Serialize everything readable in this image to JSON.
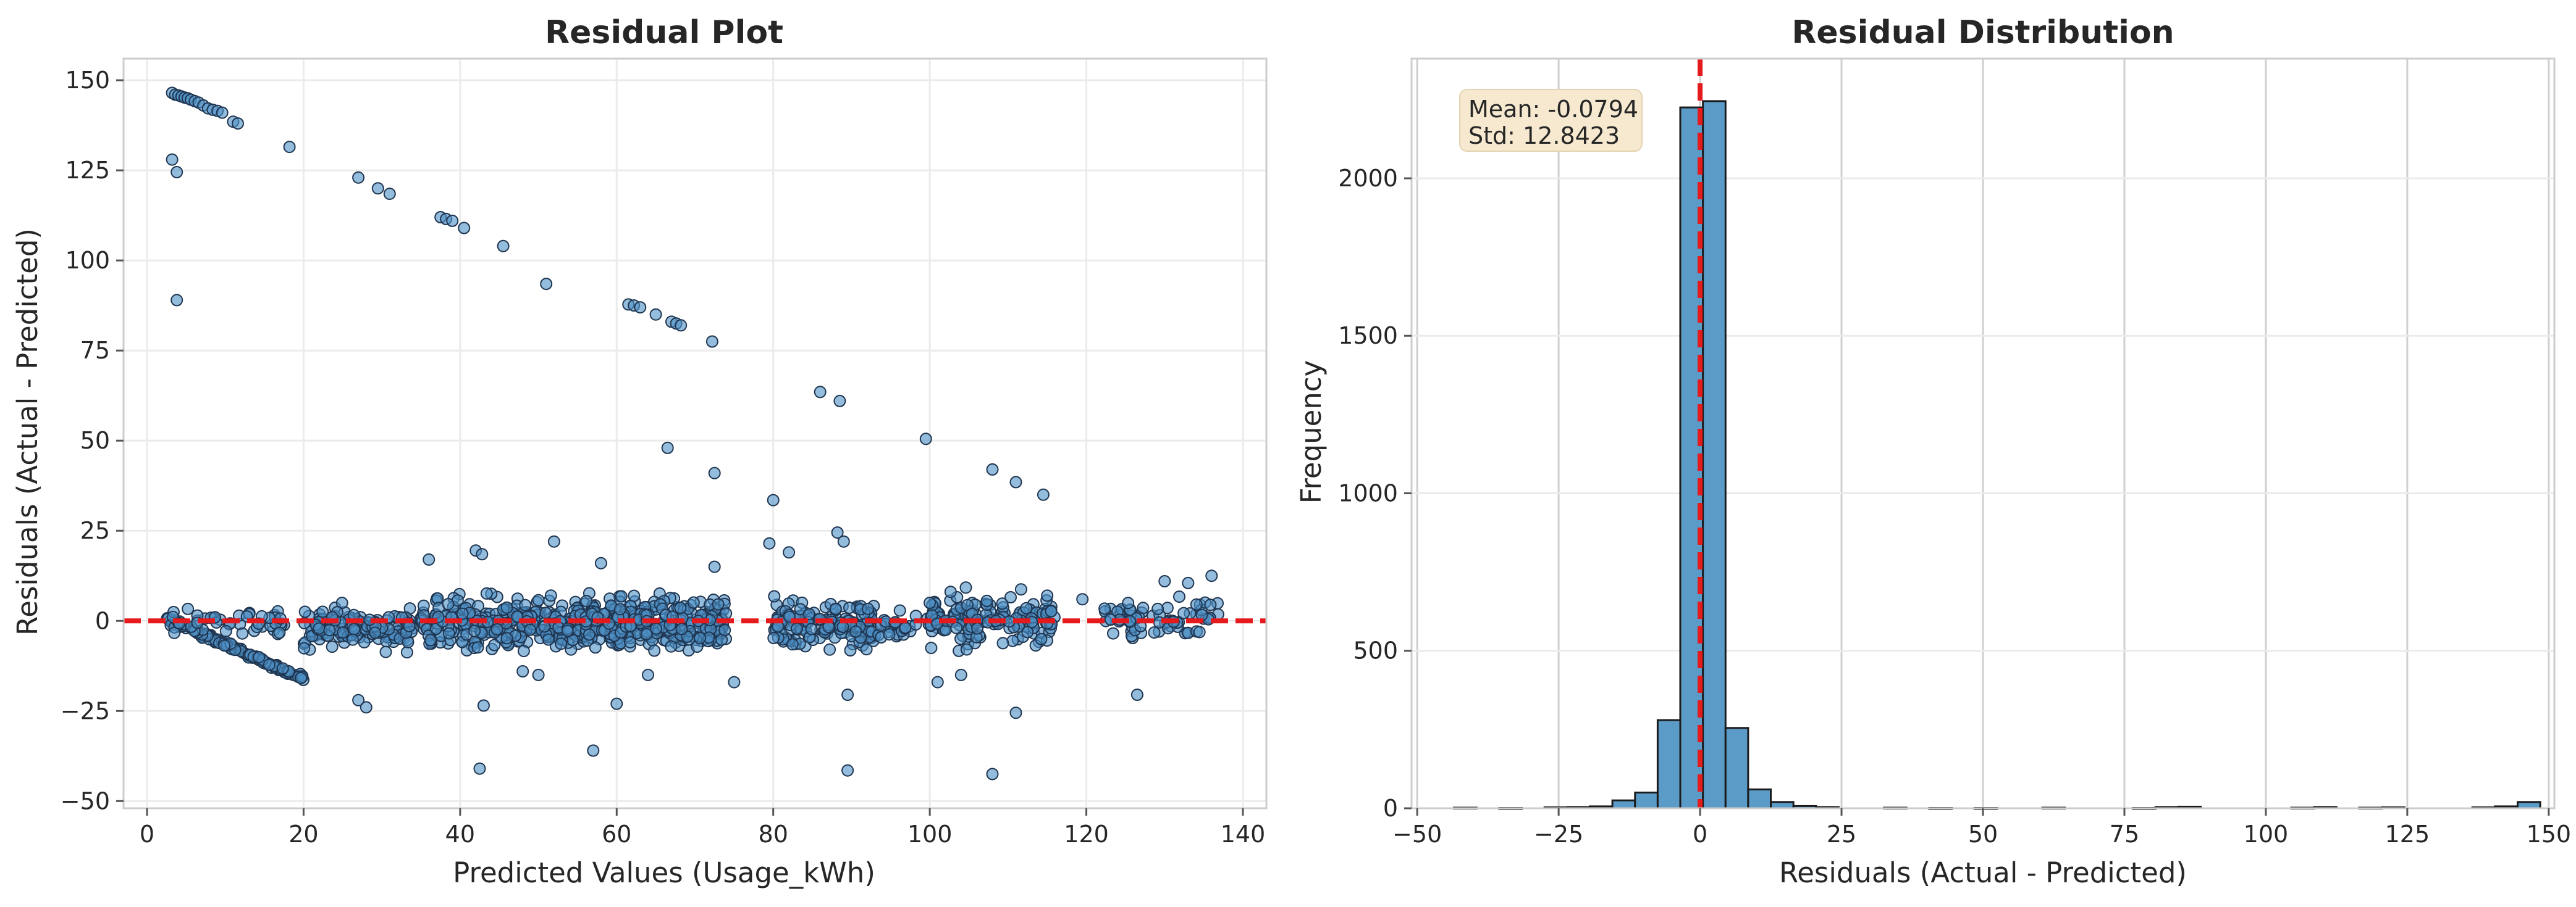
{
  "chart_data": [
    {
      "type": "scatter",
      "title": "Residual Plot",
      "xlabel": "Predicted Values (Usage_kWh)",
      "ylabel": "Residuals (Actual - Predicted)",
      "xlim": [
        -3,
        143
      ],
      "ylim": [
        -52,
        156
      ],
      "xticks": [
        0,
        20,
        40,
        60,
        80,
        100,
        120,
        140
      ],
      "yticks": [
        -50,
        -25,
        0,
        25,
        50,
        75,
        100,
        125,
        150
      ],
      "grid": true,
      "reference_line": {
        "y": 0,
        "style": "dashed",
        "color": "#e41a1c"
      },
      "point_color": "#4c8fc4",
      "outliers": [
        [
          3.2,
          146.5
        ],
        [
          3.6,
          146
        ],
        [
          4,
          145.8
        ],
        [
          4.4,
          145.5
        ],
        [
          4.8,
          145.2
        ],
        [
          5.2,
          145
        ],
        [
          5.6,
          144.6
        ],
        [
          6.1,
          144.2
        ],
        [
          6.6,
          143.8
        ],
        [
          7.2,
          143
        ],
        [
          7.8,
          142.2
        ],
        [
          8.4,
          141.8
        ],
        [
          9,
          141.5
        ],
        [
          9.6,
          141
        ],
        [
          11,
          138.5
        ],
        [
          11.6,
          138
        ],
        [
          18.2,
          131.5
        ],
        [
          27,
          123
        ],
        [
          29.5,
          120
        ],
        [
          31,
          118.5
        ],
        [
          37.5,
          112
        ],
        [
          38.2,
          111.5
        ],
        [
          39,
          111
        ],
        [
          40.5,
          109
        ],
        [
          45.5,
          104
        ],
        [
          51,
          93.5
        ],
        [
          61.5,
          87.8
        ],
        [
          62.2,
          87.5
        ],
        [
          63,
          87
        ],
        [
          65,
          85
        ],
        [
          67,
          83
        ],
        [
          67.6,
          82.5
        ],
        [
          68.2,
          82
        ],
        [
          72.2,
          77.5
        ],
        [
          86,
          63.5
        ],
        [
          88.5,
          61
        ],
        [
          99.5,
          50.5
        ],
        [
          108,
          42
        ],
        [
          111,
          38.5
        ],
        [
          114.5,
          35
        ],
        [
          3.2,
          128
        ],
        [
          3.8,
          124.5
        ],
        [
          3.8,
          89
        ],
        [
          66.5,
          48
        ],
        [
          72.5,
          41
        ],
        [
          80,
          33.5
        ],
        [
          79.5,
          21.5
        ],
        [
          82,
          19
        ],
        [
          88.2,
          24.5
        ],
        [
          89,
          22
        ],
        [
          42,
          19.5
        ],
        [
          42.8,
          18.5
        ],
        [
          52,
          22
        ],
        [
          36,
          17
        ],
        [
          72.5,
          15
        ],
        [
          58,
          16
        ],
        [
          100,
          5
        ],
        [
          115,
          7
        ],
        [
          119.5,
          6
        ],
        [
          136,
          12.5
        ],
        [
          130,
          11
        ],
        [
          133,
          10.5
        ],
        [
          27,
          -22
        ],
        [
          28,
          -24
        ],
        [
          43,
          -23.5
        ],
        [
          42.5,
          -41
        ],
        [
          57,
          -36
        ],
        [
          60,
          -23
        ],
        [
          89.5,
          -20.5
        ],
        [
          89.5,
          -41.5
        ],
        [
          108,
          -42.5
        ],
        [
          111,
          -25.5
        ],
        [
          126.5,
          -20.5
        ],
        [
          75,
          -17
        ],
        [
          101,
          -17
        ],
        [
          104,
          -15
        ],
        [
          64,
          -15
        ],
        [
          48,
          -14
        ],
        [
          50,
          -15
        ]
      ],
      "dense_clusters": [
        {
          "kind": "line",
          "x": [
            2.5,
            20
          ],
          "y": [
            0.5,
            -16
          ],
          "jitter": 1.3,
          "count": 130
        },
        {
          "kind": "blob",
          "xmin": 3,
          "xmax": 18,
          "ymin": -6,
          "ymax": 6,
          "count": 50
        },
        {
          "kind": "blob",
          "xmin": 20,
          "xmax": 34,
          "ymin": -12,
          "ymax": 8,
          "count": 150
        },
        {
          "kind": "blob",
          "xmin": 35,
          "xmax": 56,
          "ymin": -14,
          "ymax": 12,
          "count": 300
        },
        {
          "kind": "blob",
          "xmin": 56,
          "xmax": 74,
          "ymin": -13,
          "ymax": 12,
          "count": 300
        },
        {
          "kind": "blob",
          "xmin": 80,
          "xmax": 93,
          "ymin": -14,
          "ymax": 12,
          "count": 160
        },
        {
          "kind": "blob",
          "xmin": 93,
          "xmax": 100,
          "ymin": -8,
          "ymax": 6,
          "count": 30
        },
        {
          "kind": "blob",
          "xmin": 100,
          "xmax": 116,
          "ymin": -12,
          "ymax": 12,
          "count": 160
        },
        {
          "kind": "blob",
          "xmin": 122,
          "xmax": 137,
          "ymin": -8,
          "ymax": 10,
          "count": 70
        }
      ]
    },
    {
      "type": "bar",
      "subtype": "histogram",
      "title": "Residual Distribution",
      "xlabel": "Residuals (Actual - Predicted)",
      "ylabel": "Frequency",
      "xlim": [
        -51,
        151
      ],
      "ylim": [
        0,
        2380
      ],
      "xticks": [
        -50,
        -25,
        0,
        25,
        50,
        75,
        100,
        125,
        150
      ],
      "yticks": [
        0,
        500,
        1000,
        1500,
        2000
      ],
      "grid": true,
      "bar_color": "#5b9bc8",
      "reference_line": {
        "x": 0,
        "style": "dashed",
        "color": "#e41a1c"
      },
      "bins": [
        {
          "left": -43.5,
          "right": -39.5,
          "count": 2
        },
        {
          "left": -35.5,
          "right": -31.5,
          "count": 1
        },
        {
          "left": -27.5,
          "right": -23.5,
          "count": 3
        },
        {
          "left": -23.5,
          "right": -19.5,
          "count": 4
        },
        {
          "left": -19.5,
          "right": -15.5,
          "count": 6
        },
        {
          "left": -15.5,
          "right": -11.5,
          "count": 25
        },
        {
          "left": -11.5,
          "right": -7.5,
          "count": 50
        },
        {
          "left": -7.5,
          "right": -3.5,
          "count": 280
        },
        {
          "left": -3.5,
          "right": 0.5,
          "count": 2225
        },
        {
          "left": 0.5,
          "right": 4.5,
          "count": 2245
        },
        {
          "left": 4.5,
          "right": 8.5,
          "count": 255
        },
        {
          "left": 8.5,
          "right": 12.5,
          "count": 60
        },
        {
          "left": 12.5,
          "right": 16.5,
          "count": 20
        },
        {
          "left": 16.5,
          "right": 20.5,
          "count": 7
        },
        {
          "left": 20.5,
          "right": 24.5,
          "count": 4
        },
        {
          "left": 32.5,
          "right": 36.5,
          "count": 2
        },
        {
          "left": 40.5,
          "right": 44.5,
          "count": 1
        },
        {
          "left": 48.5,
          "right": 52.5,
          "count": 1
        },
        {
          "left": 60.5,
          "right": 64.5,
          "count": 2
        },
        {
          "left": 76.5,
          "right": 80.5,
          "count": 1
        },
        {
          "left": 80.5,
          "right": 84.5,
          "count": 4
        },
        {
          "left": 84.5,
          "right": 88.5,
          "count": 5
        },
        {
          "left": 104.5,
          "right": 108.5,
          "count": 2
        },
        {
          "left": 108.5,
          "right": 112.5,
          "count": 4
        },
        {
          "left": 116.5,
          "right": 120.5,
          "count": 2
        },
        {
          "left": 120.5,
          "right": 124.5,
          "count": 3
        },
        {
          "left": 136.5,
          "right": 140.5,
          "count": 3
        },
        {
          "left": 140.5,
          "right": 144.5,
          "count": 6
        },
        {
          "left": 144.5,
          "right": 148.5,
          "count": 20
        }
      ],
      "annotation": {
        "lines": [
          "Mean: -0.0794",
          "Std: 12.8423"
        ],
        "placement": "top-left"
      }
    }
  ]
}
